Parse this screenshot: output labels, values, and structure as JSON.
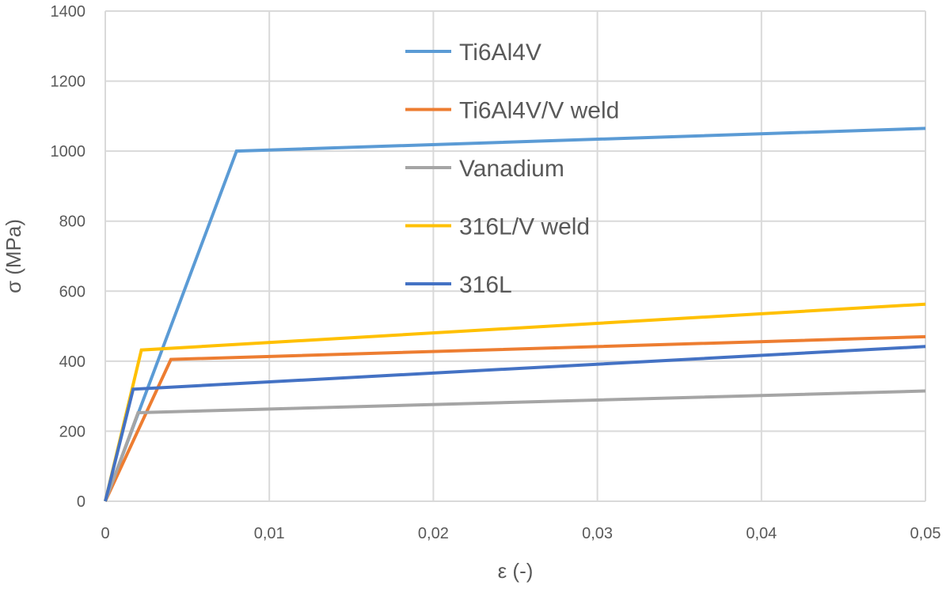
{
  "chart_data": {
    "type": "line",
    "title": "",
    "xlabel": "ε (-)",
    "ylabel": "σ (MPa)",
    "xlim": [
      0,
      0.05
    ],
    "ylim": [
      0,
      1400
    ],
    "x_ticks": [
      0,
      0.01,
      0.02,
      0.03,
      0.04,
      0.05
    ],
    "x_tick_labels": [
      "0",
      "0,01",
      "0,02",
      "0,03",
      "0,04",
      "0,05"
    ],
    "y_ticks": [
      0,
      200,
      400,
      600,
      800,
      1000,
      1200,
      1400
    ],
    "y_tick_labels": [
      "0",
      "200",
      "400",
      "600",
      "800",
      "1000",
      "1200",
      "1400"
    ],
    "grid": true,
    "legend_position": "top-center",
    "series": [
      {
        "name": "Ti6Al4V",
        "color": "#5b9bd5",
        "x": [
          0,
          0.008,
          0.05
        ],
        "y": [
          0,
          1000,
          1065
        ]
      },
      {
        "name": "Ti6Al4V/V weld",
        "color": "#ed7d31",
        "x": [
          0,
          0.004,
          0.05
        ],
        "y": [
          0,
          405,
          470
        ]
      },
      {
        "name": "Vanadium",
        "color": "#a5a5a5",
        "x": [
          0,
          0.002,
          0.05
        ],
        "y": [
          0,
          253,
          315
        ]
      },
      {
        "name": "316L/V weld",
        "color": "#ffc000",
        "x": [
          0,
          0.0022,
          0.05
        ],
        "y": [
          0,
          432,
          563
        ]
      },
      {
        "name": "316L",
        "color": "#4472c4",
        "x": [
          0,
          0.0017,
          0.05
        ],
        "y": [
          0,
          320,
          442
        ]
      }
    ]
  }
}
